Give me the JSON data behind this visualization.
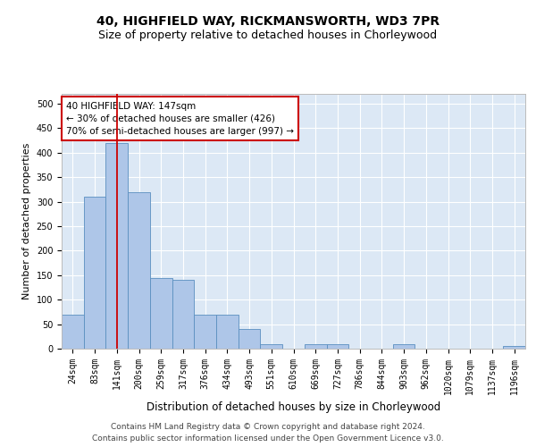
{
  "title": "40, HIGHFIELD WAY, RICKMANSWORTH, WD3 7PR",
  "subtitle": "Size of property relative to detached houses in Chorleywood",
  "xlabel": "Distribution of detached houses by size in Chorleywood",
  "ylabel": "Number of detached properties",
  "categories": [
    "24sqm",
    "83sqm",
    "141sqm",
    "200sqm",
    "259sqm",
    "317sqm",
    "376sqm",
    "434sqm",
    "493sqm",
    "551sqm",
    "610sqm",
    "669sqm",
    "727sqm",
    "786sqm",
    "844sqm",
    "903sqm",
    "962sqm",
    "1020sqm",
    "1079sqm",
    "1137sqm",
    "1196sqm"
  ],
  "values": [
    70,
    310,
    420,
    320,
    145,
    140,
    70,
    70,
    40,
    10,
    0,
    10,
    10,
    0,
    0,
    10,
    0,
    0,
    0,
    0,
    5
  ],
  "bar_color": "#aec6e8",
  "bar_edge_color": "#5a8fc0",
  "vline_x": 2,
  "vline_color": "#cc0000",
  "annotation_text": "40 HIGHFIELD WAY: 147sqm\n← 30% of detached houses are smaller (426)\n70% of semi-detached houses are larger (997) →",
  "annotation_box_color": "#ffffff",
  "annotation_box_edge": "#cc0000",
  "background_color": "#ffffff",
  "plot_bg_color": "#dce8f5",
  "grid_color": "#ffffff",
  "ylim": [
    0,
    520
  ],
  "yticks": [
    0,
    50,
    100,
    150,
    200,
    250,
    300,
    350,
    400,
    450,
    500
  ],
  "footer_line1": "Contains HM Land Registry data © Crown copyright and database right 2024.",
  "footer_line2": "Contains public sector information licensed under the Open Government Licence v3.0.",
  "title_fontsize": 10,
  "subtitle_fontsize": 9,
  "xlabel_fontsize": 8.5,
  "ylabel_fontsize": 8,
  "tick_fontsize": 7,
  "footer_fontsize": 6.5,
  "annotation_fontsize": 7.5
}
